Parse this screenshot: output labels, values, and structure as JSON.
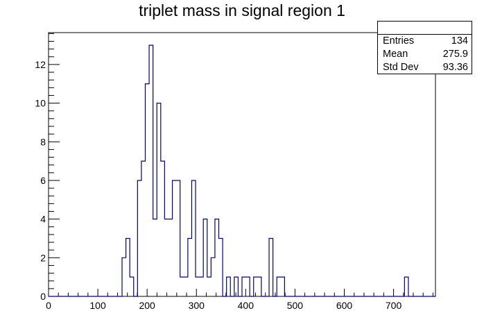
{
  "chart_data": {
    "type": "histogram",
    "title": "triplet mass in signal region 1",
    "xlabel": "",
    "ylabel": "",
    "xlim": [
      0,
      785
    ],
    "ylim": [
      0,
      13.65
    ],
    "bin_width": 7.85,
    "x_ticks": [
      0,
      100,
      200,
      300,
      400,
      500,
      600,
      700
    ],
    "y_ticks": [
      0,
      2,
      4,
      6,
      8,
      10,
      12
    ],
    "line_color": "#000080",
    "values": [
      0,
      0,
      0,
      0,
      0,
      0,
      0,
      0,
      0,
      0,
      0,
      0,
      0,
      0,
      0,
      0,
      0,
      0,
      0,
      2,
      3,
      1,
      0,
      6,
      7,
      11,
      13,
      4,
      10,
      7,
      4,
      4,
      6,
      6,
      1,
      1,
      3,
      6,
      1,
      1,
      4,
      1,
      2,
      4,
      3,
      0,
      1,
      0,
      1,
      0,
      1,
      1,
      0,
      1,
      1,
      0,
      0,
      3,
      0,
      1,
      1,
      0,
      0,
      0,
      0,
      0,
      0,
      0,
      0,
      0,
      0,
      0,
      0,
      0,
      0,
      0,
      0,
      0,
      0,
      0,
      0,
      0,
      0,
      0,
      0,
      0,
      0,
      0,
      0,
      0,
      0,
      0,
      1,
      0,
      0,
      0,
      0,
      0,
      0,
      0
    ],
    "stats": {
      "entries_label": "Entries",
      "entries": "134",
      "mean_label": "Mean",
      "mean": "275.9",
      "stddev_label": "Std Dev",
      "stddev": "93.36"
    }
  }
}
